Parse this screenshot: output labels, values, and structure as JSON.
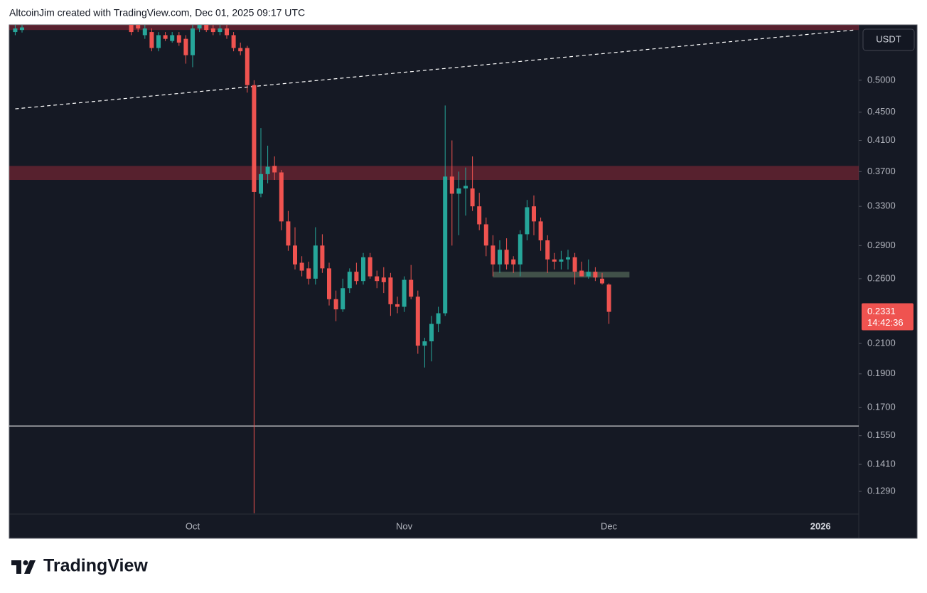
{
  "header": "AltcoinJim created with TradingView.com, Dec 01, 2025 09:17 UTC",
  "brand": "TradingView",
  "chart_data": {
    "type": "candlestick",
    "currency": "USDT",
    "countdown": "14:42:36",
    "up_color": "#26a69a",
    "down_color": "#ef5350",
    "log_scale": true,
    "grid": false,
    "categories": [
      null,
      null,
      null,
      null,
      null,
      null,
      null,
      null,
      null,
      null,
      null,
      null,
      null,
      null,
      null,
      null,
      null,
      null,
      null,
      null,
      null,
      null,
      null,
      null,
      null,
      null,
      "Oct",
      null,
      null,
      null,
      null,
      null,
      null,
      null,
      null,
      null,
      null,
      null,
      null,
      null,
      null,
      null,
      null,
      null,
      null,
      null,
      null,
      null,
      null,
      null,
      null,
      null,
      null,
      null,
      null,
      null,
      null,
      "Nov",
      null,
      null,
      null,
      null,
      null,
      null,
      null,
      null,
      null,
      null,
      null,
      null,
      null,
      null,
      null,
      null,
      null,
      null,
      null,
      null,
      null,
      null,
      null,
      null,
      null,
      null,
      null,
      null,
      null,
      "Dec",
      null,
      null,
      null,
      null,
      null,
      null,
      null,
      null,
      null,
      null,
      null,
      null,
      null,
      null,
      null,
      null,
      null,
      null,
      null,
      null,
      null,
      null,
      null,
      null,
      null,
      null,
      null,
      null,
      null,
      null,
      "2026",
      null,
      null,
      null,
      null,
      null
    ],
    "open": [
      0.586,
      0.59,
      null,
      null,
      null,
      null,
      null,
      null,
      null,
      null,
      null,
      null,
      null,
      null,
      null,
      null,
      null,
      0.6,
      0.6,
      0.58,
      0.586,
      0.556,
      0.58,
      0.569,
      0.58,
      0.573,
      0.543,
      0.593,
      0.6,
      0.593,
      0.586,
      0.593,
      0.58,
      0.556,
      0.556,
      0.492,
      0.344,
      0.367,
      0.377,
      0.369,
      0.314,
      0.29,
      0.274,
      0.269,
      0.26,
      0.29,
      0.269,
      0.243,
      0.235,
      0.252,
      0.266,
      0.258,
      0.279,
      0.262,
      0.261,
      0.261,
      0.239,
      0.237,
      0.259,
      0.245,
      0.2085,
      0.2115,
      0.224,
      0.232,
      0.364,
      0.344,
      0.35,
      0.35,
      0.33,
      0.311,
      0.29,
      0.2725,
      0.286,
      0.277,
      0.2725,
      0.301,
      0.33,
      0.314,
      0.295,
      0.277,
      0.275,
      0.277,
      0.279,
      0.267,
      0.262,
      0.266,
      0.26,
      0.255,
      null,
      null,
      null,
      null,
      null,
      null,
      null,
      null,
      null,
      null,
      null,
      null,
      null,
      null,
      null,
      null,
      null,
      null,
      null,
      null,
      null,
      null,
      null,
      null,
      null,
      null,
      null,
      null,
      null,
      null,
      null,
      null,
      null,
      null,
      null,
      null
    ],
    "high": [
      0.6,
      0.6,
      null,
      null,
      null,
      null,
      null,
      null,
      null,
      null,
      null,
      null,
      null,
      null,
      null,
      null,
      null,
      0.607,
      0.607,
      0.6,
      0.593,
      0.586,
      0.586,
      0.586,
      0.586,
      0.58,
      0.6,
      0.607,
      0.607,
      0.6,
      0.6,
      0.6,
      0.586,
      0.566,
      0.56,
      0.5,
      0.427,
      0.403,
      0.389,
      0.372,
      0.325,
      0.308,
      0.28,
      0.275,
      0.308,
      0.301,
      0.274,
      0.25,
      0.26,
      0.269,
      0.274,
      0.283,
      0.283,
      0.267,
      0.27,
      0.265,
      0.245,
      0.262,
      0.272,
      0.25,
      0.214,
      0.23,
      0.237,
      0.46,
      0.41,
      0.37,
      0.375,
      0.389,
      0.345,
      0.318,
      0.3,
      0.295,
      0.297,
      0.28,
      0.305,
      0.337,
      0.342,
      0.318,
      0.3,
      0.283,
      0.285,
      0.286,
      0.283,
      0.275,
      0.277,
      0.27,
      0.265,
      0.256,
      null,
      null,
      null,
      null,
      null,
      null,
      null,
      null,
      null,
      null,
      null,
      null,
      null,
      null,
      null,
      null,
      null,
      null,
      null,
      null,
      null,
      null,
      null,
      null,
      null,
      null,
      null,
      null,
      null,
      null,
      null,
      null,
      null,
      null,
      null,
      null
    ],
    "low": [
      0.58,
      0.585,
      null,
      null,
      null,
      null,
      null,
      null,
      null,
      null,
      null,
      null,
      null,
      null,
      null,
      null,
      null,
      0.58,
      0.586,
      0.573,
      0.55,
      0.55,
      0.569,
      0.566,
      0.56,
      0.528,
      0.522,
      0.586,
      0.586,
      0.58,
      0.58,
      0.573,
      0.55,
      0.543,
      0.48,
      0.12,
      0.34,
      0.356,
      0.36,
      0.305,
      0.285,
      0.268,
      0.262,
      0.255,
      0.255,
      0.265,
      0.238,
      0.226,
      0.233,
      0.248,
      0.255,
      0.255,
      0.26,
      0.252,
      0.248,
      0.23,
      0.232,
      0.233,
      0.243,
      0.203,
      0.194,
      0.198,
      0.218,
      0.23,
      0.29,
      0.3,
      0.32,
      0.325,
      0.305,
      0.28,
      0.262,
      0.265,
      0.268,
      0.265,
      0.262,
      0.295,
      0.3,
      0.285,
      0.265,
      0.268,
      0.268,
      0.268,
      0.255,
      0.262,
      0.26,
      0.258,
      0.255,
      0.224,
      null,
      null,
      null,
      null,
      null,
      null,
      null,
      null,
      null,
      null,
      null,
      null,
      null,
      null,
      null,
      null,
      null,
      null,
      null,
      null,
      null,
      null,
      null,
      null,
      null,
      null,
      null,
      null,
      null,
      null,
      null,
      null,
      null,
      null,
      null,
      null
    ],
    "close": [
      0.593,
      0.595,
      null,
      null,
      null,
      null,
      null,
      null,
      null,
      null,
      null,
      null,
      null,
      null,
      null,
      null,
      null,
      0.586,
      0.593,
      0.593,
      0.556,
      0.58,
      0.573,
      0.58,
      0.566,
      0.543,
      0.593,
      0.6,
      0.59,
      0.586,
      0.593,
      0.58,
      0.556,
      0.55,
      0.492,
      0.346,
      0.367,
      0.376,
      0.369,
      0.314,
      0.29,
      0.2725,
      0.267,
      0.26,
      0.29,
      0.269,
      0.243,
      0.235,
      0.252,
      0.266,
      0.258,
      0.279,
      0.262,
      0.258,
      0.257,
      0.239,
      0.237,
      0.259,
      0.245,
      0.2085,
      0.2115,
      0.224,
      0.232,
      0.364,
      0.344,
      0.35,
      0.353,
      0.33,
      0.311,
      0.29,
      0.2725,
      0.286,
      0.2725,
      0.2725,
      0.301,
      0.329,
      0.314,
      0.295,
      0.277,
      0.275,
      0.277,
      0.279,
      0.266,
      0.262,
      0.266,
      0.261,
      0.256,
      0.2331,
      null,
      null,
      null,
      null,
      null,
      null,
      null,
      null,
      null,
      null,
      null,
      null,
      null,
      null,
      null,
      null,
      null,
      null,
      null,
      null,
      null,
      null,
      null,
      null,
      null,
      null,
      null,
      null,
      null,
      null,
      null,
      null,
      null,
      null,
      null,
      null
    ],
    "ylim": [
      0.1197,
      0.6
    ],
    "yticks": [
      {
        "value": 0.5,
        "label": "0.5000"
      },
      {
        "value": 0.45,
        "label": "0.4500"
      },
      {
        "value": 0.41,
        "label": "0.4100"
      },
      {
        "value": 0.37,
        "label": "0.3700"
      },
      {
        "value": 0.33,
        "label": "0.3300"
      },
      {
        "value": 0.29,
        "label": "0.2900"
      },
      {
        "value": 0.26,
        "label": "0.2600"
      },
      {
        "value": 0.21,
        "label": "0.2100"
      },
      {
        "value": 0.19,
        "label": "0.1900"
      },
      {
        "value": 0.17,
        "label": "0.1700"
      },
      {
        "value": 0.155,
        "label": "0.1550"
      },
      {
        "value": 0.141,
        "label": "0.1410"
      },
      {
        "value": 0.129,
        "label": "0.1290"
      }
    ],
    "zones": [
      {
        "from": 0.59,
        "to": 0.612,
        "color": "rgba(242,54,69,0.3)"
      },
      {
        "from": 0.36,
        "to": 0.377,
        "color": "rgba(242,54,69,0.3)"
      },
      {
        "from": 0.261,
        "to": 0.266,
        "color": "rgba(120,150,120,0.45)",
        "start": 70,
        "end": 90
      }
    ],
    "hlines": [
      {
        "value": 0.16,
        "color": "#ffffff"
      }
    ],
    "trendlines": [
      {
        "points": [
          [
            0,
            0.455
          ],
          [
            123,
            0.59
          ]
        ],
        "color": "#ffffff"
      }
    ]
  }
}
